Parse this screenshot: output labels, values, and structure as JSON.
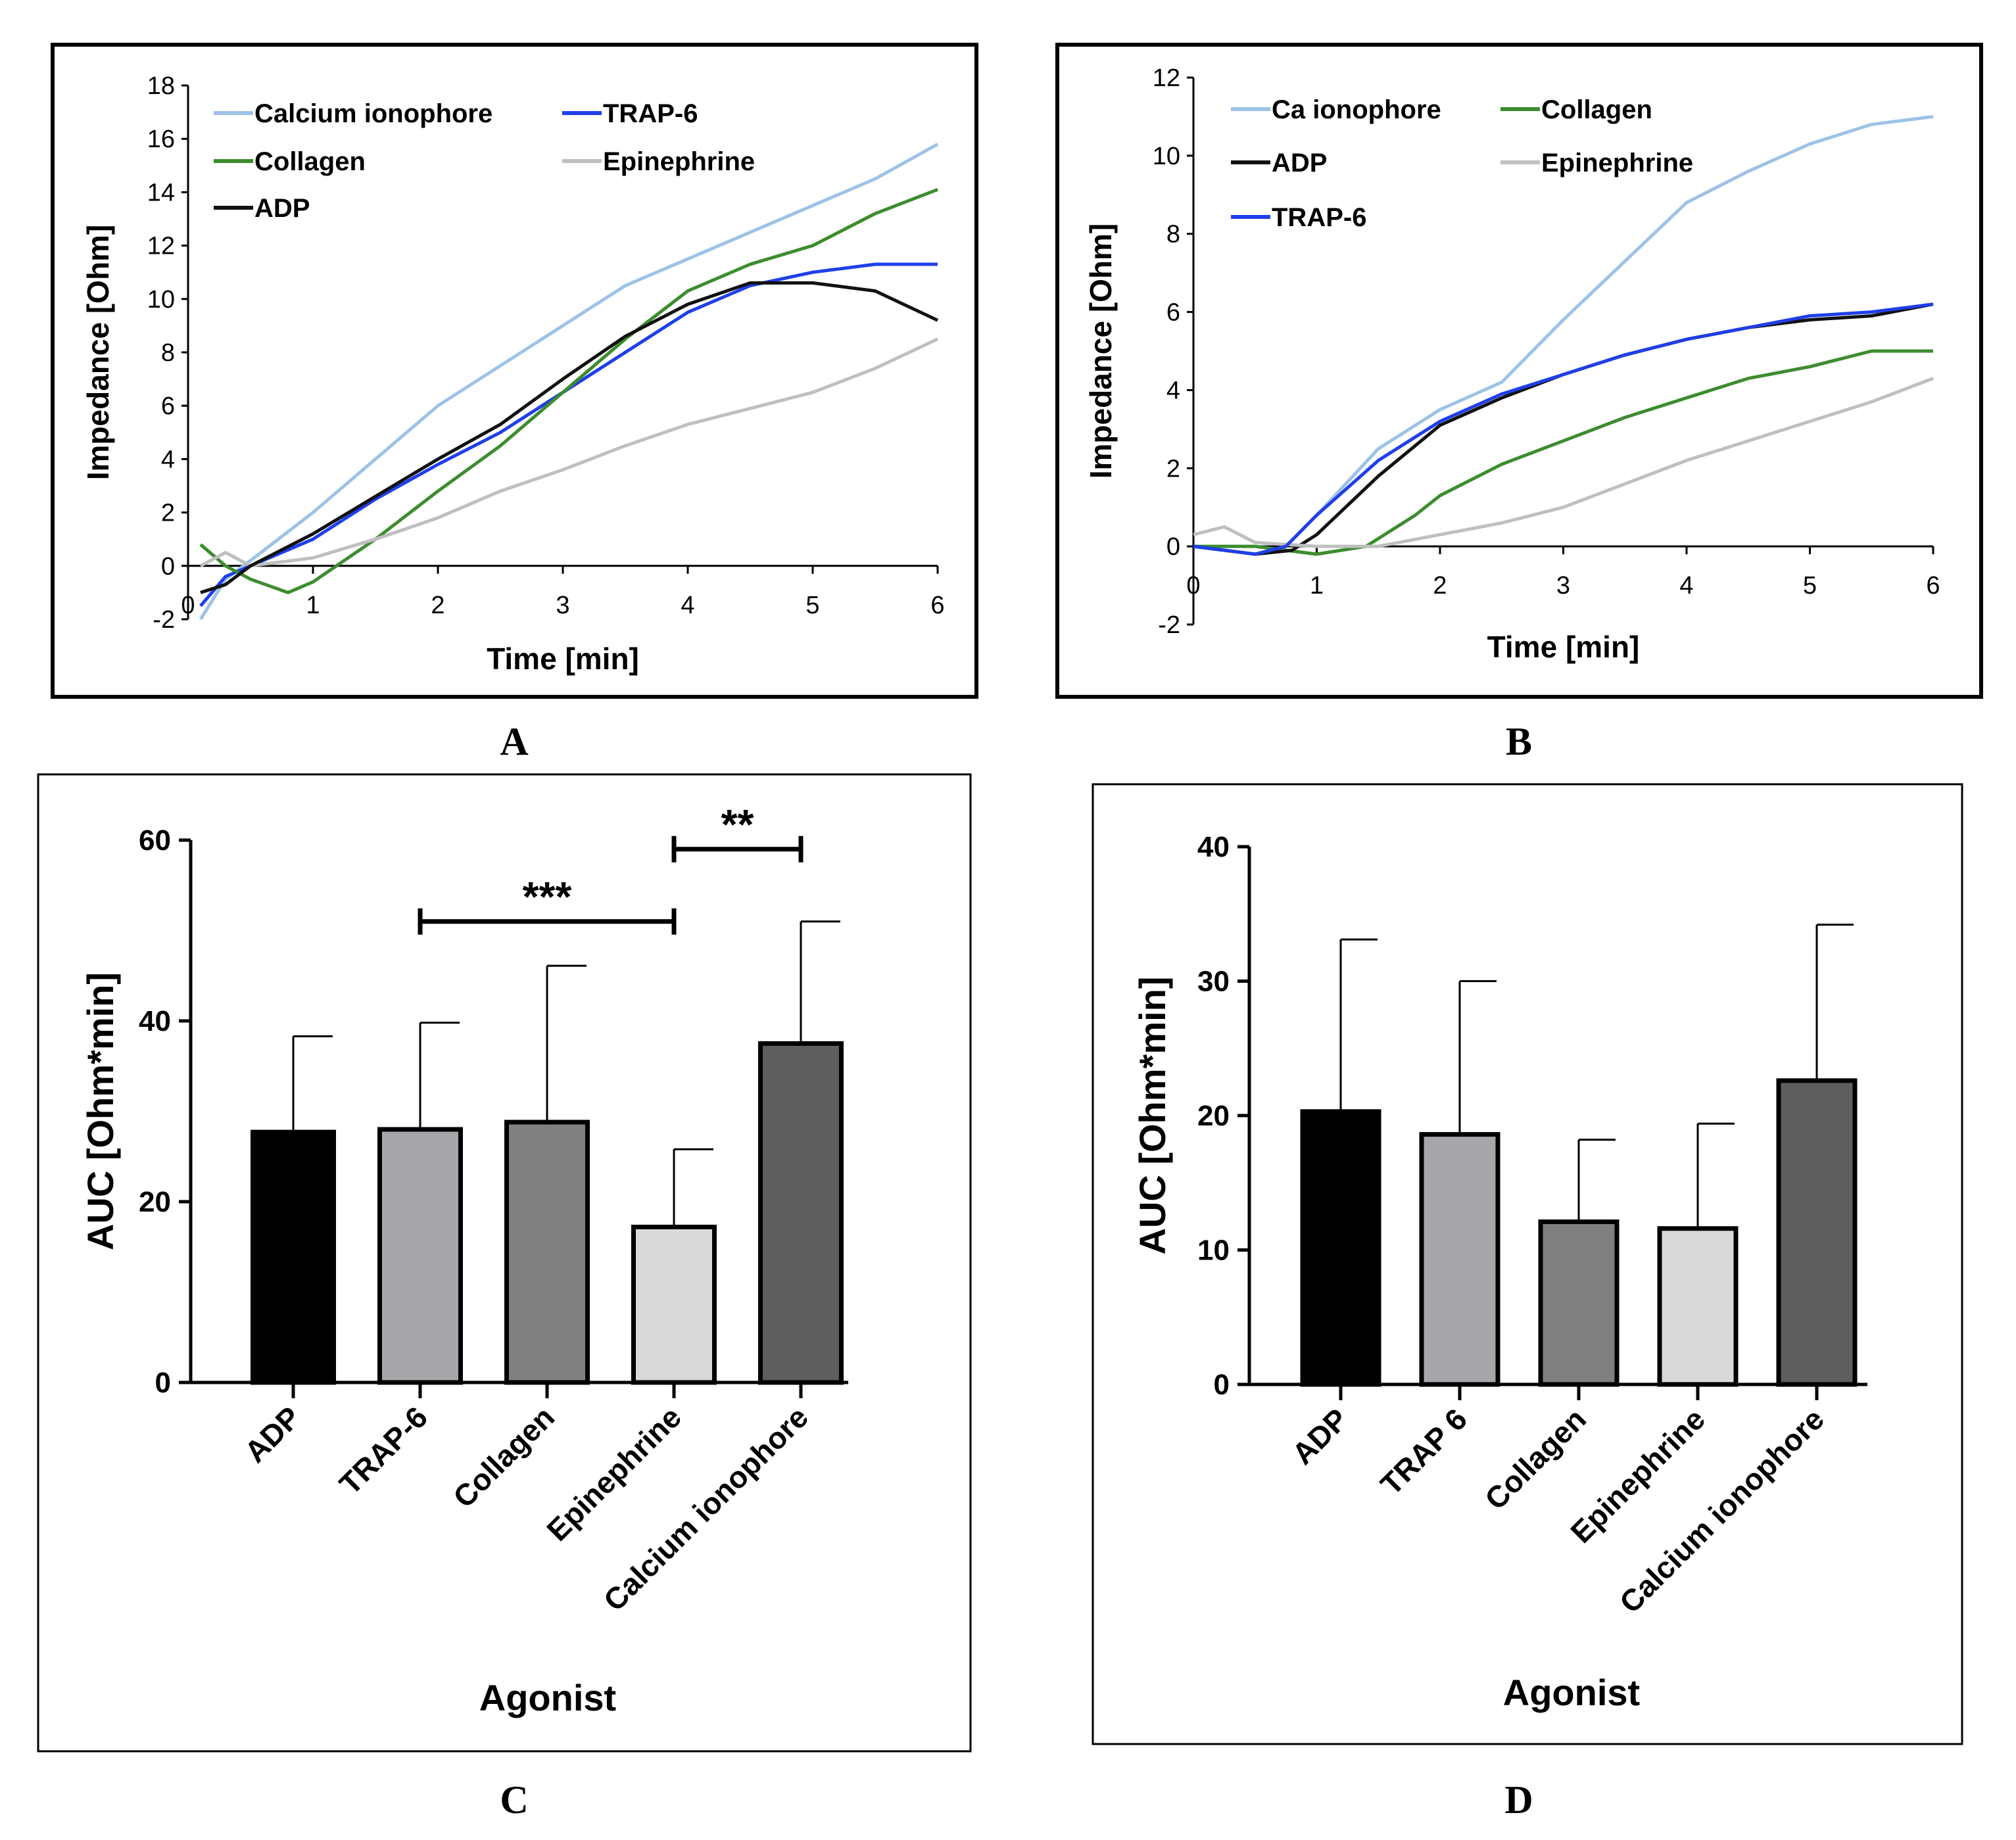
{
  "panel_labels": {
    "A": "A",
    "B": "B",
    "C": "C",
    "D": "D"
  },
  "chart_data": [
    {
      "panel": "A",
      "type": "line",
      "xlabel": "Time [min]",
      "ylabel": "Impedance [Ohm]",
      "xlim": [
        0,
        6
      ],
      "ylim": [
        -2,
        18
      ],
      "xticks": [
        0,
        1,
        2,
        3,
        4,
        5,
        6
      ],
      "yticks": [
        -2,
        0,
        2,
        4,
        6,
        8,
        10,
        12,
        14,
        16,
        18
      ],
      "series": [
        {
          "name": "Calcium ionophore",
          "color": "#9dc3e6",
          "x": [
            0.1,
            0.3,
            0.5,
            1.0,
            1.5,
            2.0,
            2.5,
            3.0,
            3.5,
            4.0,
            4.5,
            5.0,
            5.5,
            6.0
          ],
          "y": [
            -2,
            -0.5,
            0.2,
            2.0,
            4.0,
            6.0,
            7.5,
            9.0,
            10.5,
            11.5,
            12.5,
            13.5,
            14.5,
            15.8
          ]
        },
        {
          "name": "TRAP-6",
          "color": "#1f3fe8",
          "x": [
            0.1,
            0.3,
            0.5,
            1.0,
            1.5,
            2.0,
            2.5,
            3.0,
            3.5,
            4.0,
            4.5,
            5.0,
            5.5,
            6.0
          ],
          "y": [
            -1.5,
            -0.4,
            0,
            1.0,
            2.5,
            3.8,
            5.0,
            6.5,
            8.0,
            9.5,
            10.5,
            11.0,
            11.3,
            11.3
          ]
        },
        {
          "name": "Collagen",
          "color": "#3d8c2f",
          "x": [
            0.1,
            0.3,
            0.5,
            0.8,
            1.0,
            1.5,
            2.0,
            2.5,
            3.0,
            3.5,
            4.0,
            4.5,
            5.0,
            5.5,
            6.0
          ],
          "y": [
            0.8,
            0,
            -0.5,
            -1.0,
            -0.6,
            1.0,
            2.8,
            4.5,
            6.5,
            8.5,
            10.3,
            11.3,
            12.0,
            13.2,
            14.1
          ]
        },
        {
          "name": "Epinephrine",
          "color": "#bfbfbf",
          "x": [
            0.1,
            0.3,
            0.5,
            1.0,
            1.5,
            2.0,
            2.5,
            3.0,
            3.5,
            4.0,
            4.5,
            5.0,
            5.5,
            6.0
          ],
          "y": [
            0,
            0.5,
            0,
            0.3,
            1.0,
            1.8,
            2.8,
            3.6,
            4.5,
            5.3,
            5.9,
            6.5,
            7.4,
            8.5
          ]
        },
        {
          "name": "ADP",
          "color": "#111111",
          "x": [
            0.1,
            0.3,
            0.5,
            1.0,
            1.5,
            2.0,
            2.5,
            3.0,
            3.5,
            4.0,
            4.5,
            5.0,
            5.5,
            6.0
          ],
          "y": [
            -1,
            -0.7,
            0,
            1.2,
            2.6,
            4.0,
            5.3,
            7.0,
            8.6,
            9.8,
            10.6,
            10.6,
            10.3,
            9.2
          ]
        }
      ],
      "legend": {
        "placement": "top-left"
      }
    },
    {
      "panel": "B",
      "type": "line",
      "xlabel": "Time [min]",
      "ylabel": "Impedance [Ohm]",
      "xlim": [
        0,
        6
      ],
      "ylim": [
        -2,
        12
      ],
      "xticks": [
        0,
        1,
        2,
        3,
        4,
        5,
        6
      ],
      "yticks": [
        -2,
        0,
        2,
        4,
        6,
        8,
        10,
        12
      ],
      "series": [
        {
          "name": "Ca ionophore",
          "color": "#9dc3e6",
          "x": [
            0,
            0.25,
            0.5,
            0.75,
            1.0,
            1.5,
            2.0,
            2.5,
            3.0,
            3.5,
            4.0,
            4.5,
            5.0,
            5.5,
            6.0
          ],
          "y": [
            0,
            -0.1,
            -0.2,
            0,
            0.8,
            2.5,
            3.5,
            4.2,
            5.8,
            7.3,
            8.8,
            9.6,
            10.3,
            10.8,
            11.0
          ]
        },
        {
          "name": "Collagen",
          "color": "#3d8c2f",
          "x": [
            0,
            0.5,
            1.0,
            1.4,
            1.8,
            2.0,
            2.5,
            3.0,
            3.5,
            4.0,
            4.5,
            5.0,
            5.5,
            6.0
          ],
          "y": [
            0,
            0,
            -0.2,
            0,
            0.8,
            1.3,
            2.1,
            2.7,
            3.3,
            3.8,
            4.3,
            4.6,
            5.0,
            5.0
          ]
        },
        {
          "name": "ADP",
          "color": "#111111",
          "x": [
            0,
            0.5,
            0.8,
            1.0,
            1.5,
            2.0,
            2.5,
            3.0,
            3.5,
            4.0,
            4.5,
            5.0,
            5.5,
            6.0
          ],
          "y": [
            0,
            -0.2,
            -0.1,
            0.3,
            1.8,
            3.1,
            3.8,
            4.4,
            4.9,
            5.3,
            5.6,
            5.8,
            5.9,
            6.2
          ]
        },
        {
          "name": "Epinephrine",
          "color": "#bfbfbf",
          "x": [
            0,
            0.25,
            0.5,
            1.0,
            1.5,
            2.0,
            2.5,
            3.0,
            3.5,
            4.0,
            4.5,
            5.0,
            5.5,
            6.0
          ],
          "y": [
            0.3,
            0.5,
            0.1,
            0,
            0,
            0.3,
            0.6,
            1.0,
            1.6,
            2.2,
            2.7,
            3.2,
            3.7,
            4.3
          ]
        },
        {
          "name": "TRAP-6",
          "color": "#1f3fe8",
          "x": [
            0,
            0.5,
            0.75,
            1.0,
            1.5,
            2.0,
            2.5,
            3.0,
            3.5,
            4.0,
            4.5,
            5.0,
            5.5,
            6.0
          ],
          "y": [
            0,
            -0.2,
            0,
            0.8,
            2.2,
            3.2,
            3.9,
            4.4,
            4.9,
            5.3,
            5.6,
            5.9,
            6.0,
            6.2
          ]
        }
      ],
      "legend": {
        "placement": "top-left"
      }
    },
    {
      "panel": "C",
      "type": "bar",
      "xlabel": "Agonist",
      "ylabel": "AUC [Ohm*min]",
      "ylim": [
        0,
        60
      ],
      "yticks": [
        0,
        20,
        40,
        60
      ],
      "categories": [
        "ADP",
        "TRAP-6",
        "Collagen",
        "Epinephrine",
        "Calcium ionophore"
      ],
      "values": [
        27.7,
        28.0,
        28.8,
        17.2,
        37.5
      ],
      "errors": [
        10.6,
        11.8,
        17.3,
        8.6,
        13.5
      ],
      "colors": [
        "#000000",
        "#a6a6ab",
        "#808080",
        "#d9d9d9",
        "#5e5e5e"
      ],
      "significance": [
        {
          "from": 1,
          "to": 3,
          "label": "***",
          "y": 51
        },
        {
          "from": 3,
          "to": 4,
          "label": "**",
          "y": 59
        }
      ]
    },
    {
      "panel": "D",
      "type": "bar",
      "xlabel": "Agonist",
      "ylabel": "AUC [Ohm*min]",
      "ylim": [
        0,
        40
      ],
      "yticks": [
        0,
        10,
        20,
        30,
        40
      ],
      "categories": [
        "ADP",
        "TRAP 6",
        "Collagen",
        "Epinephrine",
        "Calcium ionophore"
      ],
      "values": [
        20.3,
        18.6,
        12.1,
        11.6,
        22.6
      ],
      "errors": [
        12.8,
        11.4,
        6.1,
        7.8,
        11.6
      ],
      "colors": [
        "#000000",
        "#a6a6ab",
        "#808080",
        "#d9d9d9",
        "#5e5e5e"
      ]
    }
  ]
}
